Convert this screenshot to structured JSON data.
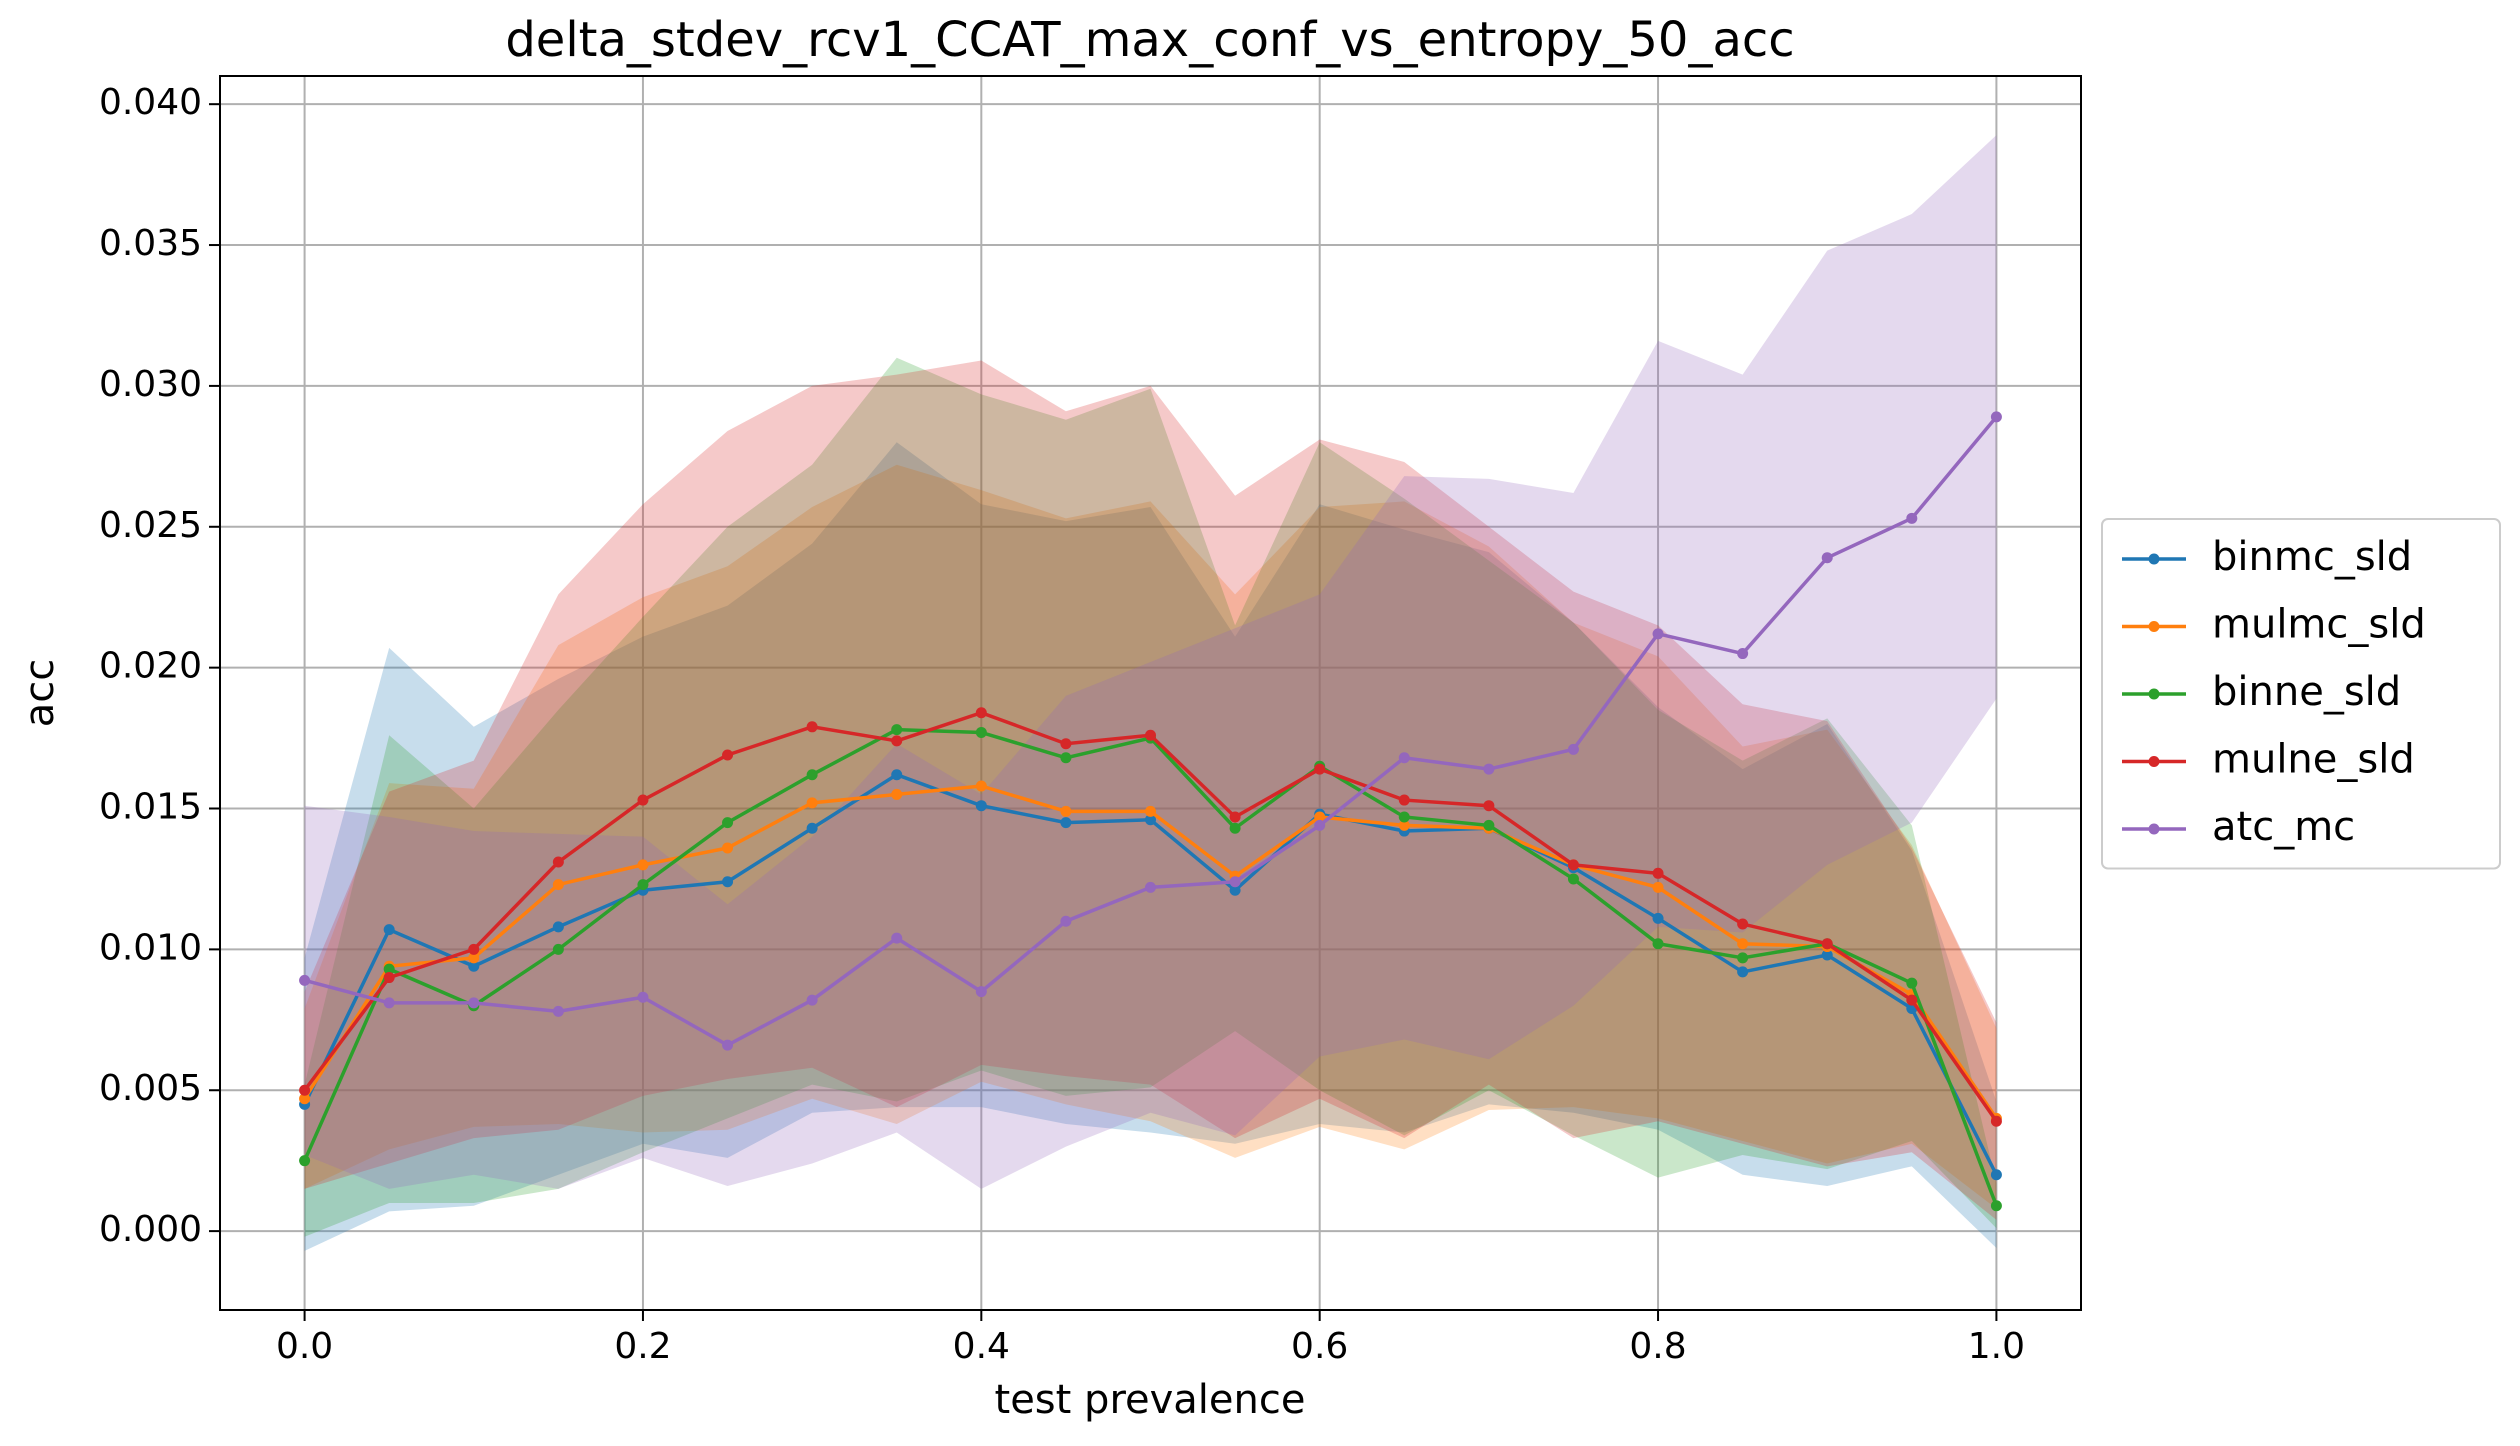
{
  "chart_data": {
    "type": "line",
    "title": "delta_stdev_rcv1_CCAT_max_conf_vs_entropy_50_acc",
    "xlabel": "test prevalence",
    "ylabel": "acc",
    "x": [
      0,
      0.05,
      0.1,
      0.15,
      0.2,
      0.25,
      0.3,
      0.35,
      0.4,
      0.45,
      0.5,
      0.55,
      0.6,
      0.65,
      0.7,
      0.75,
      0.8,
      0.85,
      0.9,
      0.95,
      1
    ],
    "series": [
      {
        "name": "binmc_sld",
        "color": "#1f77b4",
        "values": [
          0.0045,
          0.0107,
          0.0094,
          0.0108,
          0.0121,
          0.0124,
          0.0143,
          0.0162,
          0.0151,
          0.0145,
          0.0146,
          0.0121,
          0.0148,
          0.0142,
          0.0143,
          0.0129,
          0.0111,
          0.0092,
          0.0098,
          0.0079,
          0.002
        ],
        "std": [
          0.0052,
          0.01,
          0.0085,
          0.0088,
          0.009,
          0.0098,
          0.0101,
          0.0118,
          0.0107,
          0.0107,
          0.0111,
          0.009,
          0.011,
          0.0107,
          0.0098,
          0.0087,
          0.0075,
          0.0072,
          0.0082,
          0.0056,
          0.0026
        ]
      },
      {
        "name": "mulmc_sld",
        "color": "#ff7f0e",
        "values": [
          0.0047,
          0.0094,
          0.0097,
          0.0123,
          0.013,
          0.0136,
          0.0152,
          0.0155,
          0.0158,
          0.0149,
          0.0149,
          0.0126,
          0.0147,
          0.0144,
          0.0143,
          0.013,
          0.0122,
          0.0102,
          0.0101,
          0.0084,
          0.004
        ],
        "std": [
          0.0032,
          0.0065,
          0.006,
          0.0085,
          0.0095,
          0.01,
          0.0105,
          0.0117,
          0.0105,
          0.0104,
          0.011,
          0.01,
          0.011,
          0.0115,
          0.01,
          0.0086,
          0.0082,
          0.007,
          0.0077,
          0.0053,
          0.0032
        ]
      },
      {
        "name": "binne_sld",
        "color": "#2ca02c",
        "values": [
          0.0025,
          0.0093,
          0.008,
          0.01,
          0.0123,
          0.0145,
          0.0162,
          0.0178,
          0.0177,
          0.0168,
          0.0175,
          0.0143,
          0.0165,
          0.0147,
          0.0144,
          0.0125,
          0.0102,
          0.0097,
          0.0102,
          0.0088,
          0.0009
        ],
        "std": [
          0.0027,
          0.0083,
          0.007,
          0.0085,
          0.0095,
          0.0105,
          0.011,
          0.0132,
          0.012,
          0.012,
          0.0124,
          0.0072,
          0.0115,
          0.0113,
          0.0094,
          0.0091,
          0.0083,
          0.007,
          0.008,
          0.0056,
          0.0008
        ]
      },
      {
        "name": "mulne_sld",
        "color": "#d62728",
        "values": [
          0.005,
          0.009,
          0.01,
          0.0131,
          0.0153,
          0.0169,
          0.0179,
          0.0174,
          0.0184,
          0.0173,
          0.0176,
          0.0147,
          0.0164,
          0.0153,
          0.0151,
          0.013,
          0.0127,
          0.0109,
          0.0102,
          0.0082,
          0.0039
        ],
        "std": [
          0.0035,
          0.0066,
          0.0067,
          0.0095,
          0.0105,
          0.0115,
          0.0121,
          0.013,
          0.0125,
          0.0118,
          0.0124,
          0.0114,
          0.0117,
          0.012,
          0.0099,
          0.0097,
          0.0088,
          0.0078,
          0.0079,
          0.0054,
          0.0035
        ]
      },
      {
        "name": "atc_mc",
        "color": "#9467bd",
        "values": [
          0.0089,
          0.0081,
          0.0081,
          0.0078,
          0.0083,
          0.0066,
          0.0082,
          0.0104,
          0.0085,
          0.011,
          0.0122,
          0.0124,
          0.0144,
          0.0168,
          0.0164,
          0.0171,
          0.0212,
          0.0205,
          0.0239,
          0.0253,
          0.0289
        ],
        "std": [
          0.0062,
          0.0066,
          0.0061,
          0.0063,
          0.0057,
          0.005,
          0.0058,
          0.0069,
          0.007,
          0.008,
          0.008,
          0.009,
          0.0082,
          0.01,
          0.0103,
          0.0091,
          0.0104,
          0.0099,
          0.0109,
          0.0108,
          0.01
        ]
      }
    ],
    "xlim": [
      -0.05,
      1.05
    ],
    "ylim": [
      -0.0028,
      0.041
    ],
    "xticks": [
      {
        "value": 0,
        "label": "0.0"
      },
      {
        "value": 0.2,
        "label": "0.2"
      },
      {
        "value": 0.4,
        "label": "0.4"
      },
      {
        "value": 0.6,
        "label": "0.6"
      },
      {
        "value": 0.8,
        "label": "0.8"
      },
      {
        "value": 1,
        "label": "1.0"
      }
    ],
    "yticks": [
      {
        "value": 0,
        "label": "0.000"
      },
      {
        "value": 0.005,
        "label": "0.005"
      },
      {
        "value": 0.01,
        "label": "0.010"
      },
      {
        "value": 0.015,
        "label": "0.015"
      },
      {
        "value": 0.02,
        "label": "0.020"
      },
      {
        "value": 0.025,
        "label": "0.025"
      },
      {
        "value": 0.03,
        "label": "0.030"
      },
      {
        "value": 0.035,
        "label": "0.035"
      },
      {
        "value": 0.04,
        "label": "0.040"
      }
    ],
    "grid": true,
    "legend": "right",
    "band_opacity": 0.25
  }
}
